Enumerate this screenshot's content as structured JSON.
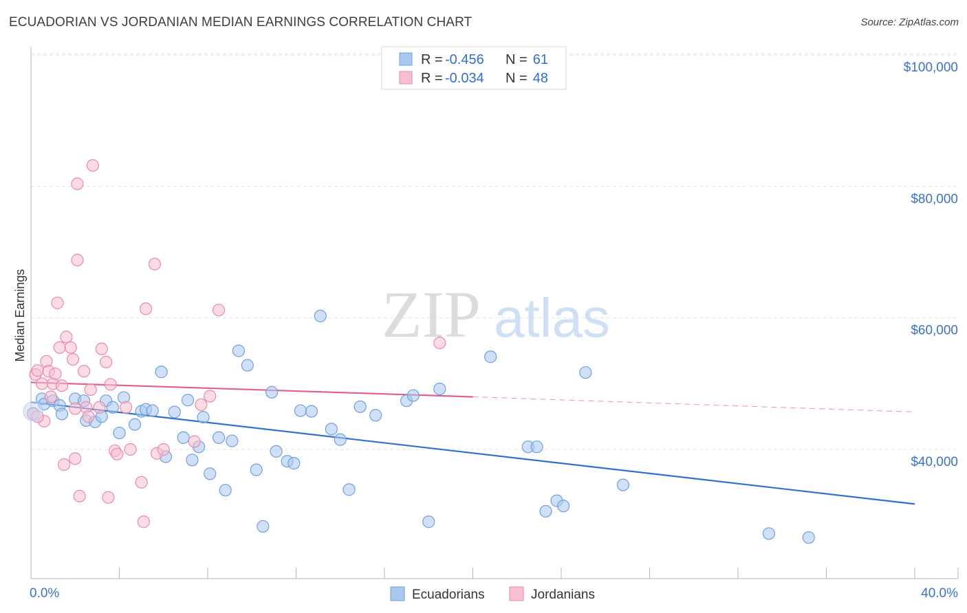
{
  "title": "ECUADORIAN VS JORDANIAN MEDIAN EARNINGS CORRELATION CHART",
  "source": "Source: ZipAtlas.com",
  "watermark": {
    "zip": "ZIP",
    "atlas": "atlas"
  },
  "legend": {
    "rows": [
      {
        "r_label": "R =",
        "r_value": "-0.456",
        "n_label": "N =",
        "n_value": "61",
        "color": "#a9c8f0",
        "stroke": "#6f9fdc"
      },
      {
        "r_label": "R =",
        "r_value": "-0.034",
        "n_label": "N =",
        "n_value": "48",
        "color": "#f7bfd0",
        "stroke": "#e88aa8"
      }
    ]
  },
  "bottom_legend": [
    {
      "label": "Ecuadorians",
      "color": "#a9c8f0",
      "stroke": "#6f9fdc"
    },
    {
      "label": "Jordanians",
      "color": "#f7bfd0",
      "stroke": "#e88aa8"
    }
  ],
  "chart_data": {
    "type": "scatter",
    "xlabel": "",
    "ylabel": "Median Earnings",
    "xlim": [
      0,
      40
    ],
    "ylim": [
      22000,
      103000
    ],
    "x_tick_labels": {
      "min": "0.0%",
      "max": "40.0%"
    },
    "y_ticks": [
      {
        "value": 100000,
        "label": "$100,000"
      },
      {
        "value": 80000,
        "label": "$80,000"
      },
      {
        "value": 60000,
        "label": "$60,000"
      },
      {
        "value": 40000,
        "label": "$40,000"
      }
    ],
    "grid": "horizontal dashed",
    "series": [
      {
        "name": "Ecuadorians",
        "color": "#6f9fdc",
        "fill": "#a9c8f0",
        "trend": {
          "x": [
            0,
            40
          ],
          "y": [
            47200,
            31700
          ],
          "style": "solid",
          "color": "#2f6fcf"
        },
        "points": [
          [
            0.1,
            45500
          ],
          [
            0.5,
            47700
          ],
          [
            0.6,
            46900
          ],
          [
            1.0,
            47400
          ],
          [
            1.3,
            46700
          ],
          [
            1.4,
            45400
          ],
          [
            2.0,
            47700
          ],
          [
            2.4,
            47400
          ],
          [
            2.5,
            44400
          ],
          [
            2.9,
            44200
          ],
          [
            3.2,
            45000
          ],
          [
            3.4,
            47400
          ],
          [
            3.7,
            46400
          ],
          [
            4.0,
            42500
          ],
          [
            4.2,
            47900
          ],
          [
            4.7,
            43800
          ],
          [
            5.0,
            45800
          ],
          [
            5.2,
            46100
          ],
          [
            5.5,
            45900
          ],
          [
            5.9,
            51800
          ],
          [
            6.1,
            38900
          ],
          [
            6.5,
            45700
          ],
          [
            6.9,
            41800
          ],
          [
            7.1,
            47500
          ],
          [
            7.3,
            38400
          ],
          [
            7.6,
            40400
          ],
          [
            7.8,
            44900
          ],
          [
            8.1,
            36300
          ],
          [
            8.5,
            41800
          ],
          [
            8.8,
            33800
          ],
          [
            9.1,
            41300
          ],
          [
            9.4,
            55000
          ],
          [
            9.8,
            52800
          ],
          [
            10.2,
            36900
          ],
          [
            10.5,
            28300
          ],
          [
            10.9,
            48700
          ],
          [
            11.1,
            39700
          ],
          [
            11.6,
            38200
          ],
          [
            11.9,
            37900
          ],
          [
            12.2,
            45900
          ],
          [
            12.7,
            45800
          ],
          [
            13.1,
            60300
          ],
          [
            13.6,
            43100
          ],
          [
            14.0,
            41500
          ],
          [
            14.4,
            33900
          ],
          [
            14.9,
            46500
          ],
          [
            15.6,
            45200
          ],
          [
            17.0,
            47400
          ],
          [
            17.3,
            48200
          ],
          [
            18.0,
            29000
          ],
          [
            18.5,
            49200
          ],
          [
            20.8,
            54100
          ],
          [
            22.5,
            40400
          ],
          [
            22.9,
            40400
          ],
          [
            23.3,
            30600
          ],
          [
            23.8,
            32200
          ],
          [
            24.1,
            31400
          ],
          [
            25.1,
            51700
          ],
          [
            26.8,
            34600
          ],
          [
            33.4,
            27200
          ],
          [
            35.2,
            26600
          ]
        ]
      },
      {
        "name": "Jordanians",
        "color": "#e88aa8",
        "fill": "#f7bfd0",
        "trend": {
          "x": [
            0,
            20
          ],
          "y": [
            50200,
            48000
          ],
          "style": "solid",
          "color": "#e0628c",
          "extend_to": 40,
          "extend_y": 45700,
          "extend_style": "dashed"
        },
        "points": [
          [
            0.1,
            45400
          ],
          [
            0.2,
            51400
          ],
          [
            0.3,
            52000
          ],
          [
            0.5,
            50000
          ],
          [
            0.6,
            44300
          ],
          [
            0.7,
            53400
          ],
          [
            0.8,
            51900
          ],
          [
            0.9,
            48000
          ],
          [
            1.0,
            50000
          ],
          [
            1.1,
            51500
          ],
          [
            1.2,
            62300
          ],
          [
            1.3,
            55500
          ],
          [
            1.4,
            49700
          ],
          [
            1.5,
            37700
          ],
          [
            1.6,
            57100
          ],
          [
            1.8,
            55500
          ],
          [
            1.9,
            53700
          ],
          [
            2.0,
            38600
          ],
          [
            2.1,
            80400
          ],
          [
            2.1,
            68800
          ],
          [
            2.2,
            32900
          ],
          [
            2.4,
            51900
          ],
          [
            2.5,
            46400
          ],
          [
            2.6,
            45000
          ],
          [
            2.7,
            49100
          ],
          [
            2.8,
            83200
          ],
          [
            3.1,
            46400
          ],
          [
            3.2,
            55300
          ],
          [
            3.4,
            53300
          ],
          [
            3.5,
            32700
          ],
          [
            3.6,
            49900
          ],
          [
            3.8,
            39800
          ],
          [
            3.9,
            39300
          ],
          [
            4.3,
            46400
          ],
          [
            4.5,
            40000
          ],
          [
            5.0,
            35000
          ],
          [
            5.1,
            29000
          ],
          [
            5.2,
            61400
          ],
          [
            5.6,
            68200
          ],
          [
            5.7,
            39400
          ],
          [
            6.0,
            40000
          ],
          [
            7.4,
            41200
          ],
          [
            7.7,
            46800
          ],
          [
            8.1,
            48100
          ],
          [
            8.5,
            61200
          ],
          [
            18.5,
            56200
          ],
          [
            0.3,
            45000
          ],
          [
            2.0,
            46200
          ]
        ]
      }
    ]
  }
}
